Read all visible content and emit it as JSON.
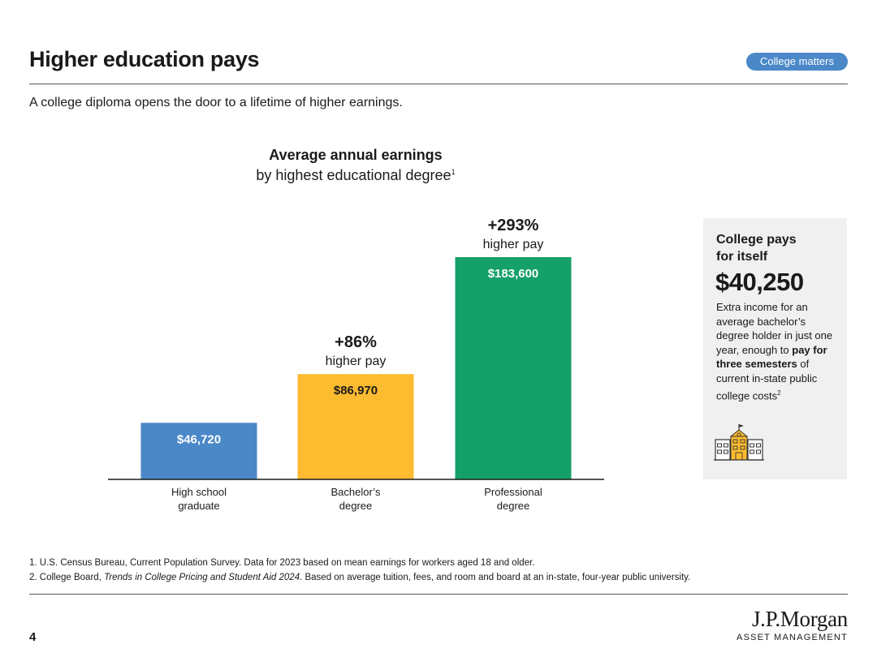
{
  "header": {
    "title": "Higher education pays",
    "badge": "College matters"
  },
  "subtitle": "A college diploma opens the door to a lifetime of higher earnings.",
  "chart_data": {
    "type": "bar",
    "title": "Average annual earnings",
    "subtitle": "by highest educational degree",
    "subtitle_sup": "1",
    "categories": [
      {
        "line1": "High school",
        "line2": "graduate"
      },
      {
        "line1": "Bachelor’s",
        "line2": "degree"
      },
      {
        "line1": "Professional",
        "line2": "degree"
      }
    ],
    "values": [
      46720,
      86970,
      183600
    ],
    "value_labels": [
      "$46,720",
      "$86,970",
      "$183,600"
    ],
    "colors": [
      "#4a88c8",
      "#fdbb30",
      "#15a06a"
    ],
    "value_label_colors": [
      "#ffffff",
      "#1a1a1a",
      "#ffffff"
    ],
    "annotations": [
      null,
      {
        "pct": "+86%",
        "text": "higher pay"
      },
      {
        "pct": "+293%",
        "text": "higher pay"
      }
    ],
    "ylim": [
      0,
      183600
    ],
    "grid": false
  },
  "sidebar": {
    "heading_line1": "College pays",
    "heading_line2": "for itself",
    "amount": "$40,250",
    "desc_part1": "Extra income for an average bachelor’s degree holder in just one year, enough to",
    "desc_bold": "pay for three semesters",
    "desc_part2": "of current in-state public college costs",
    "desc_sup": "2",
    "icon": "school-building-icon"
  },
  "footnotes": {
    "note1": "1. U.S. Census Bureau, Current Population Survey. Data for 2023 based on mean earnings for workers aged 18 and older.",
    "note2_pre": "2. College Board,",
    "note2_italic": "Trends in College Pricing and Student Aid 2024",
    "note2_post": ". Based on average tuition, fees, and room and board at an in-state, four-year public university."
  },
  "page_number": "4",
  "logo": {
    "name": "J.P.Morgan",
    "sub": "ASSET MANAGEMENT"
  }
}
